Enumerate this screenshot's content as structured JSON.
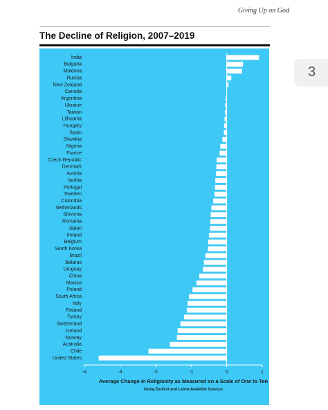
{
  "header": {
    "running_title": "Giving Up on God",
    "page_number": "3"
  },
  "chart_data": {
    "type": "bar",
    "orientation": "horizontal",
    "title": "The Decline of Religion, 2007–2019",
    "x_axis_label": "Average Change in Religiosity as Measured on a Scale of One to Ten",
    "x_axis_sublabel": "Using Earliest and Latest Available Surveys",
    "categories": [
      "India",
      "Bulgaria",
      "Moldova",
      "Russia",
      "New Zealand",
      "Canada",
      "Argentina",
      "Ukraine",
      "Taiwan",
      "Lithuania",
      "Hungary",
      "Spain",
      "Slovakia",
      "Nigeria",
      "France",
      "Czech Republic",
      "Denmark",
      "Austria",
      "Serbia",
      "Portugal",
      "Sweden",
      "Colombia",
      "Netherlands",
      "Slovenia",
      "Romania",
      "Japan",
      "Ireland",
      "Belgium",
      "South Korea",
      "Brazil",
      "Belarus",
      "Uruguay",
      "China",
      "Mexico",
      "Poland",
      "South Africa",
      "Italy",
      "Finland",
      "Turkey",
      "Switzerland",
      "Iceland",
      "Norway",
      "Australia",
      "Chile",
      "United States"
    ],
    "values": [
      0.91,
      0.46,
      0.43,
      0.13,
      0.05,
      0,
      -0.03,
      -0.04,
      -0.05,
      -0.06,
      -0.07,
      -0.08,
      -0.12,
      -0.18,
      -0.2,
      -0.28,
      -0.29,
      -0.3,
      -0.32,
      -0.33,
      -0.34,
      -0.38,
      -0.43,
      -0.45,
      -0.46,
      -0.47,
      -0.5,
      -0.52,
      -0.53,
      -0.6,
      -0.64,
      -0.67,
      -0.77,
      -0.85,
      -0.96,
      -1.06,
      -1.1,
      -1.12,
      -1.2,
      -1.3,
      -1.38,
      -1.4,
      -1.6,
      -2.2,
      -3.6
    ],
    "color": "#ffffff",
    "xlim": [
      -4,
      1
    ],
    "xticks": [
      -4,
      -3,
      -2,
      -1,
      0,
      1
    ],
    "grid": false
  }
}
